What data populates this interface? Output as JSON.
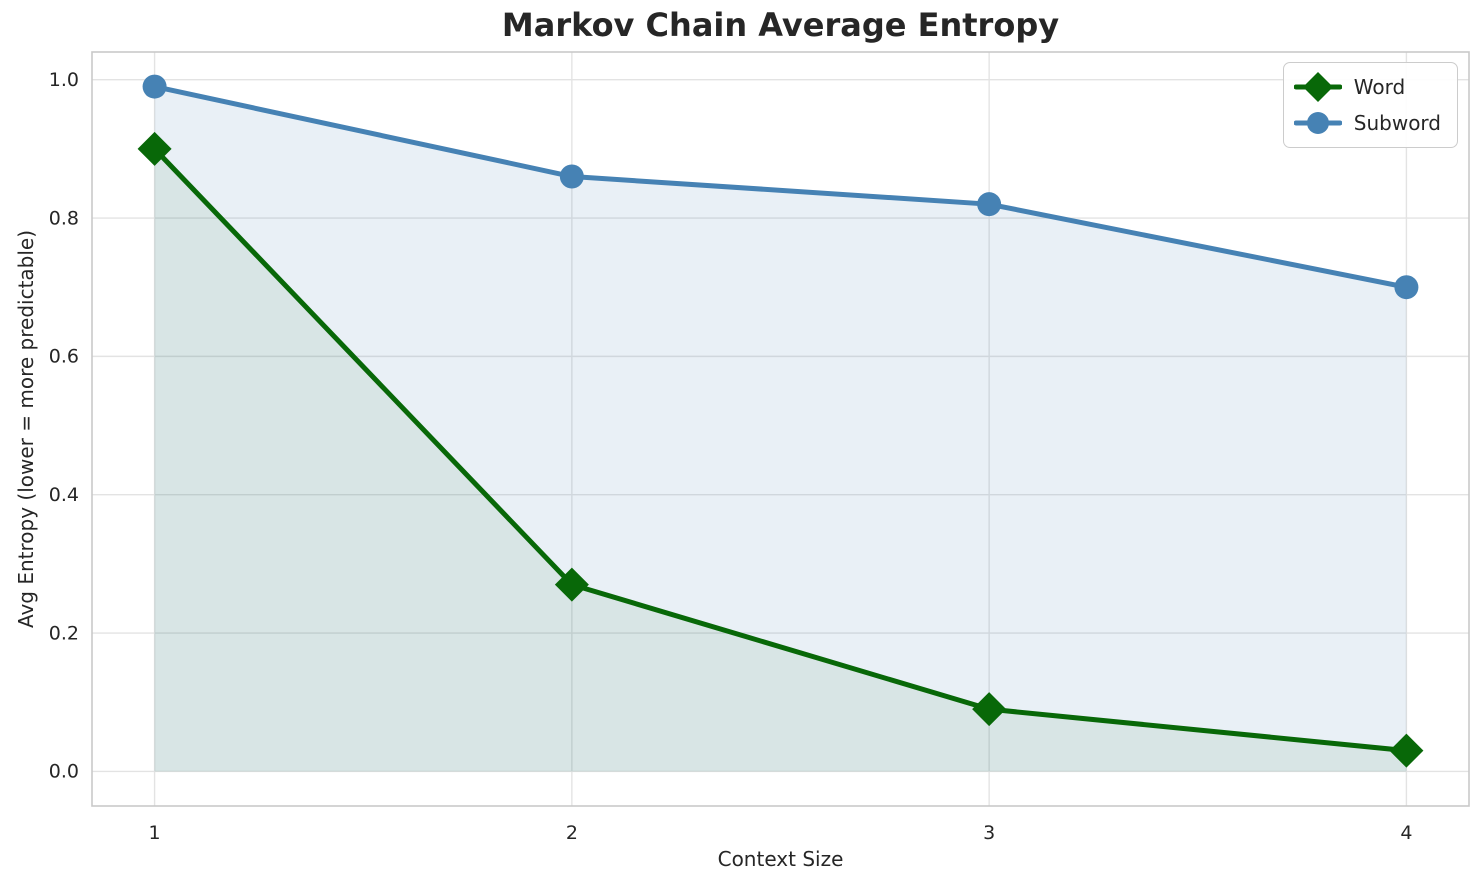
{
  "chart_data": {
    "type": "line",
    "title": "Markov Chain Average Entropy",
    "xlabel": "Context Size",
    "ylabel": "Avg Entropy (lower = more predictable)",
    "x": [
      1,
      2,
      3,
      4
    ],
    "series": [
      {
        "name": "Word",
        "values": [
          0.9,
          0.27,
          0.09,
          0.03
        ],
        "color": "#086808",
        "marker": "diamond",
        "fill_opacity": 0.08
      },
      {
        "name": "Subword",
        "values": [
          0.99,
          0.86,
          0.82,
          0.7
        ],
        "color": "#4682B4",
        "marker": "circle",
        "fill_opacity": 0.12
      }
    ],
    "xticks": [
      1,
      2,
      3,
      4
    ],
    "xtick_labels": [
      "1",
      "2",
      "3",
      "4"
    ],
    "yticks": [
      0,
      0.2,
      0.4,
      0.6,
      0.8,
      1
    ],
    "ytick_labels": [
      "0.0",
      "0.2",
      "0.4",
      "0.6",
      "0.8",
      "1.0"
    ],
    "xlim": [
      0.85,
      4.15
    ],
    "ylim": [
      -0.05,
      1.04
    ],
    "grid": true,
    "legend_position": "upper right",
    "area_fill": true,
    "area_baseline": 0
  },
  "legend": {
    "items": [
      {
        "label": "Word"
      },
      {
        "label": "Subword"
      }
    ]
  },
  "colors": {
    "text": "#262626",
    "background": "#ffffff",
    "word_green": "#086808",
    "subword_blue": "#4682B4",
    "grid": "#e3e3e3",
    "spine": "#c9c9c9"
  }
}
